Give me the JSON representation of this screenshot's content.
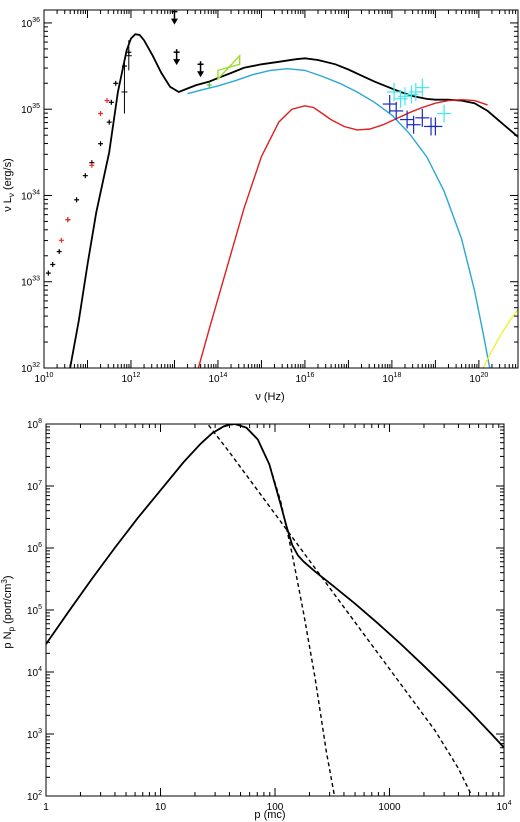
{
  "chart_data": [
    {
      "type": "line",
      "xlabel_base": "ν",
      "xlabel_unit": "(Hz)",
      "ylabel_nu": "ν",
      "ylabel_L": "L",
      "ylabel_sub": "ν",
      "ylabel_unit": "(erg/s)",
      "xscale": "log",
      "yscale": "log",
      "xlim_exp": [
        10,
        20.9
      ],
      "ylim_exp": [
        32,
        36.15
      ],
      "x_ticks": [
        {
          "exp": 10,
          "base": "10",
          "sup": "10"
        },
        {
          "exp": 12,
          "base": "10",
          "sup": "12"
        },
        {
          "exp": 14,
          "base": "10",
          "sup": "14"
        },
        {
          "exp": 16,
          "base": "10",
          "sup": "16"
        },
        {
          "exp": 18,
          "base": "10",
          "sup": "18"
        },
        {
          "exp": 20,
          "base": "10",
          "sup": "20"
        }
      ],
      "y_ticks": [
        {
          "exp": 32,
          "base": "10",
          "sup": "32"
        },
        {
          "exp": 33,
          "base": "10",
          "sup": "33"
        },
        {
          "exp": 34,
          "base": "10",
          "sup": "34"
        },
        {
          "exp": 35,
          "base": "10",
          "sup": "35"
        },
        {
          "exp": 36,
          "base": "10",
          "sup": "36"
        }
      ],
      "grid": false,
      "colors": {
        "total": "#000000",
        "blue": "#2aa7d6",
        "red": "#dd1f1f",
        "yellow": "#f2ee3c",
        "cyan": "#3fe8ea",
        "navy": "#1a2ac0",
        "green": "#55c23a",
        "lime": "#9ddc2e",
        "pink": "#ee2a2a"
      },
      "series": [
        {
          "key": "total",
          "color": "#000000",
          "log_x": [
            10.6,
            10.8,
            11.0,
            11.2,
            11.5,
            11.7,
            11.9,
            12.0,
            12.1,
            12.2,
            12.3,
            12.5,
            12.7,
            12.9,
            13.1,
            13.3,
            13.5,
            13.8,
            14.0,
            14.3,
            14.6,
            15.0,
            15.4,
            15.8,
            16.0,
            16.3,
            16.7,
            17.0,
            17.3,
            17.6,
            17.9,
            18.2,
            18.5,
            18.8,
            19.0,
            19.3,
            19.6,
            19.9,
            20.2,
            20.5,
            20.9
          ],
          "log_y": [
            32.0,
            32.55,
            33.2,
            33.8,
            34.5,
            35.2,
            35.68,
            35.82,
            35.87,
            35.86,
            35.8,
            35.62,
            35.42,
            35.26,
            35.2,
            35.24,
            35.28,
            35.32,
            35.36,
            35.42,
            35.48,
            35.52,
            35.55,
            35.58,
            35.59,
            35.57,
            35.52,
            35.46,
            35.39,
            35.32,
            35.26,
            35.2,
            35.15,
            35.12,
            35.11,
            35.11,
            35.1,
            35.07,
            34.98,
            34.85,
            34.68
          ]
        },
        {
          "key": "blue",
          "color": "#2aa7d6",
          "log_x": [
            13.3,
            13.6,
            14.0,
            14.4,
            14.8,
            15.2,
            15.6,
            16.0,
            16.4,
            16.8,
            17.2,
            17.6,
            18.0,
            18.4,
            18.8,
            19.2,
            19.6,
            19.9,
            20.1,
            20.25,
            20.35,
            20.45
          ],
          "log_y": [
            35.18,
            35.22,
            35.27,
            35.33,
            35.4,
            35.45,
            35.47,
            35.45,
            35.38,
            35.3,
            35.2,
            35.08,
            34.93,
            34.72,
            34.45,
            34.05,
            33.5,
            32.9,
            32.4,
            32.0,
            31.6,
            31.2
          ]
        },
        {
          "key": "red",
          "color": "#dd1f1f",
          "log_x": [
            13.55,
            13.8,
            14.2,
            14.6,
            15.0,
            15.4,
            15.7,
            16.0,
            16.2,
            16.4,
            16.6,
            16.9,
            17.2,
            17.5,
            17.8,
            18.1,
            18.4,
            18.7,
            19.0,
            19.3,
            19.6,
            19.9,
            20.2
          ],
          "log_y": [
            32.0,
            32.45,
            33.15,
            33.85,
            34.45,
            34.85,
            35.0,
            35.04,
            35.02,
            34.95,
            34.88,
            34.8,
            34.76,
            34.77,
            34.82,
            34.89,
            34.96,
            35.02,
            35.07,
            35.1,
            35.11,
            35.1,
            35.05
          ]
        },
        {
          "key": "yellow",
          "color": "#f2ee3c",
          "log_x": [
            20.1,
            20.3,
            20.5,
            20.7,
            20.9
          ],
          "log_y": [
            32.0,
            32.2,
            32.38,
            32.54,
            32.68
          ]
        }
      ],
      "points": [
        {
          "group": "radio-black",
          "color": "#000000",
          "log_x": [
            10.1,
            10.2,
            10.35,
            10.55,
            10.75,
            10.95,
            11.1,
            11.3,
            11.5
          ],
          "log_y": [
            33.1,
            33.2,
            33.35,
            33.72,
            33.95,
            34.23,
            34.38,
            34.6,
            34.85
          ]
        },
        {
          "group": "radio-red",
          "color": "#ee2a2a",
          "log_x": [
            10.4,
            10.55,
            11.1,
            11.3,
            11.45
          ],
          "log_y": [
            33.48,
            33.72,
            34.35,
            34.95,
            35.1
          ]
        },
        {
          "group": "mid-black",
          "color": "#000000",
          "log_x": [
            11.55,
            11.65,
            11.85,
            11.95
          ],
          "log_y": [
            35.08,
            35.3,
            35.5,
            35.66
          ]
        },
        {
          "group": "ir-green",
          "color": "#55c23a",
          "log_x": [
            13.8
          ],
          "log_y": [
            35.28
          ]
        },
        {
          "group": "xray-cyan",
          "color": "#3fe8ea",
          "log_x": [
            18.05,
            18.2,
            18.3,
            18.45,
            18.55,
            18.7,
            19.2
          ],
          "log_y": [
            35.2,
            35.12,
            35.15,
            35.17,
            35.2,
            35.25,
            34.95
          ]
        },
        {
          "group": "xray-navy",
          "color": "#1a2ac0",
          "log_x": [
            17.95,
            18.1,
            18.35,
            18.5,
            18.7,
            18.9,
            19.0
          ],
          "log_y": [
            35.06,
            34.98,
            34.88,
            34.82,
            34.9,
            34.8,
            34.8
          ]
        }
      ],
      "errorbars": [
        {
          "color": "#000000",
          "log_x": 11.85,
          "log_y": 35.2,
          "y_lo": 34.95,
          "y_hi": 35.55
        },
        {
          "color": "#000000",
          "log_x": 11.95,
          "log_y": 35.62,
          "y_lo": 35.45,
          "y_hi": 35.8
        }
      ],
      "upper_limits": [
        {
          "color": "#000000",
          "log_x": 13.0,
          "log_y": 36.05
        },
        {
          "color": "#000000",
          "log_x": 13.05,
          "log_y": 35.58
        },
        {
          "color": "#000000",
          "log_x": 13.6,
          "log_y": 35.44
        }
      ],
      "bowtie": {
        "color": "#9ddc2e",
        "log_x": [
          14.0,
          14.5
        ],
        "log_y_left": [
          35.35,
          35.45
        ],
        "log_y_right": [
          35.52,
          35.62
        ]
      }
    },
    {
      "type": "line",
      "xlabel_base": "p",
      "xlabel_unit": "(mc)",
      "ylabel_p": "p",
      "ylabel_N": "N",
      "ylabel_sub": "p",
      "ylabel_unit": "(port/cm",
      "ylabel_unit_sup": "3",
      "ylabel_unit_close": ")",
      "xscale": "log",
      "yscale": "log",
      "xlim_exp": [
        0,
        4
      ],
      "ylim_exp": [
        2,
        8
      ],
      "x_ticks": [
        {
          "exp": 0,
          "base": "1"
        },
        {
          "exp": 1,
          "base": "10"
        },
        {
          "exp": 2,
          "base": "100"
        },
        {
          "exp": 3,
          "base": "1000"
        },
        {
          "exp": 4,
          "base": "10",
          "sup": "4"
        }
      ],
      "y_ticks": [
        {
          "exp": 2,
          "base": "10",
          "sup": "2"
        },
        {
          "exp": 3,
          "base": "10",
          "sup": "3"
        },
        {
          "exp": 4,
          "base": "10",
          "sup": "4"
        },
        {
          "exp": 5,
          "base": "10",
          "sup": "5"
        },
        {
          "exp": 6,
          "base": "10",
          "sup": "6"
        },
        {
          "exp": 7,
          "base": "10",
          "sup": "7"
        },
        {
          "exp": 8,
          "base": "10",
          "sup": "8"
        }
      ],
      "grid": false,
      "series": [
        {
          "key": "total",
          "style": "solid",
          "color": "#000000",
          "log_x": [
            0.0,
            0.2,
            0.4,
            0.6,
            0.8,
            1.0,
            1.2,
            1.35,
            1.45,
            1.55,
            1.6,
            1.65,
            1.75,
            1.85,
            1.95,
            2.05,
            2.1,
            2.15,
            2.2,
            2.25,
            2.35,
            2.5,
            2.7,
            2.9,
            3.1,
            3.3,
            3.5,
            3.7,
            3.9,
            4.0
          ],
          "log_y": [
            4.45,
            4.98,
            5.5,
            6.0,
            6.48,
            6.93,
            7.38,
            7.68,
            7.85,
            7.96,
            7.99,
            8.0,
            7.94,
            7.75,
            7.35,
            6.7,
            6.35,
            6.05,
            5.88,
            5.78,
            5.62,
            5.4,
            5.1,
            4.78,
            4.45,
            4.1,
            3.74,
            3.37,
            2.98,
            2.78
          ]
        },
        {
          "key": "thermal",
          "style": "dashed",
          "color": "#000000",
          "log_x": [
            1.45,
            1.55,
            1.65,
            1.75,
            1.85,
            1.95,
            2.05,
            2.15,
            2.25,
            2.35,
            2.45,
            2.52
          ],
          "log_y": [
            7.85,
            7.96,
            8.0,
            7.94,
            7.75,
            7.35,
            6.75,
            5.9,
            4.95,
            3.9,
            2.7,
            2.0
          ]
        },
        {
          "key": "powerlaw",
          "style": "dashed",
          "color": "#000000",
          "log_x": [
            1.42,
            1.6,
            1.8,
            2.0,
            2.2,
            2.4,
            2.6,
            2.8,
            3.0,
            3.2,
            3.4,
            3.6,
            3.72
          ],
          "log_y": [
            7.98,
            7.55,
            7.05,
            6.55,
            6.05,
            5.55,
            5.05,
            4.55,
            4.05,
            3.55,
            3.05,
            2.45,
            2.0
          ]
        }
      ]
    }
  ]
}
